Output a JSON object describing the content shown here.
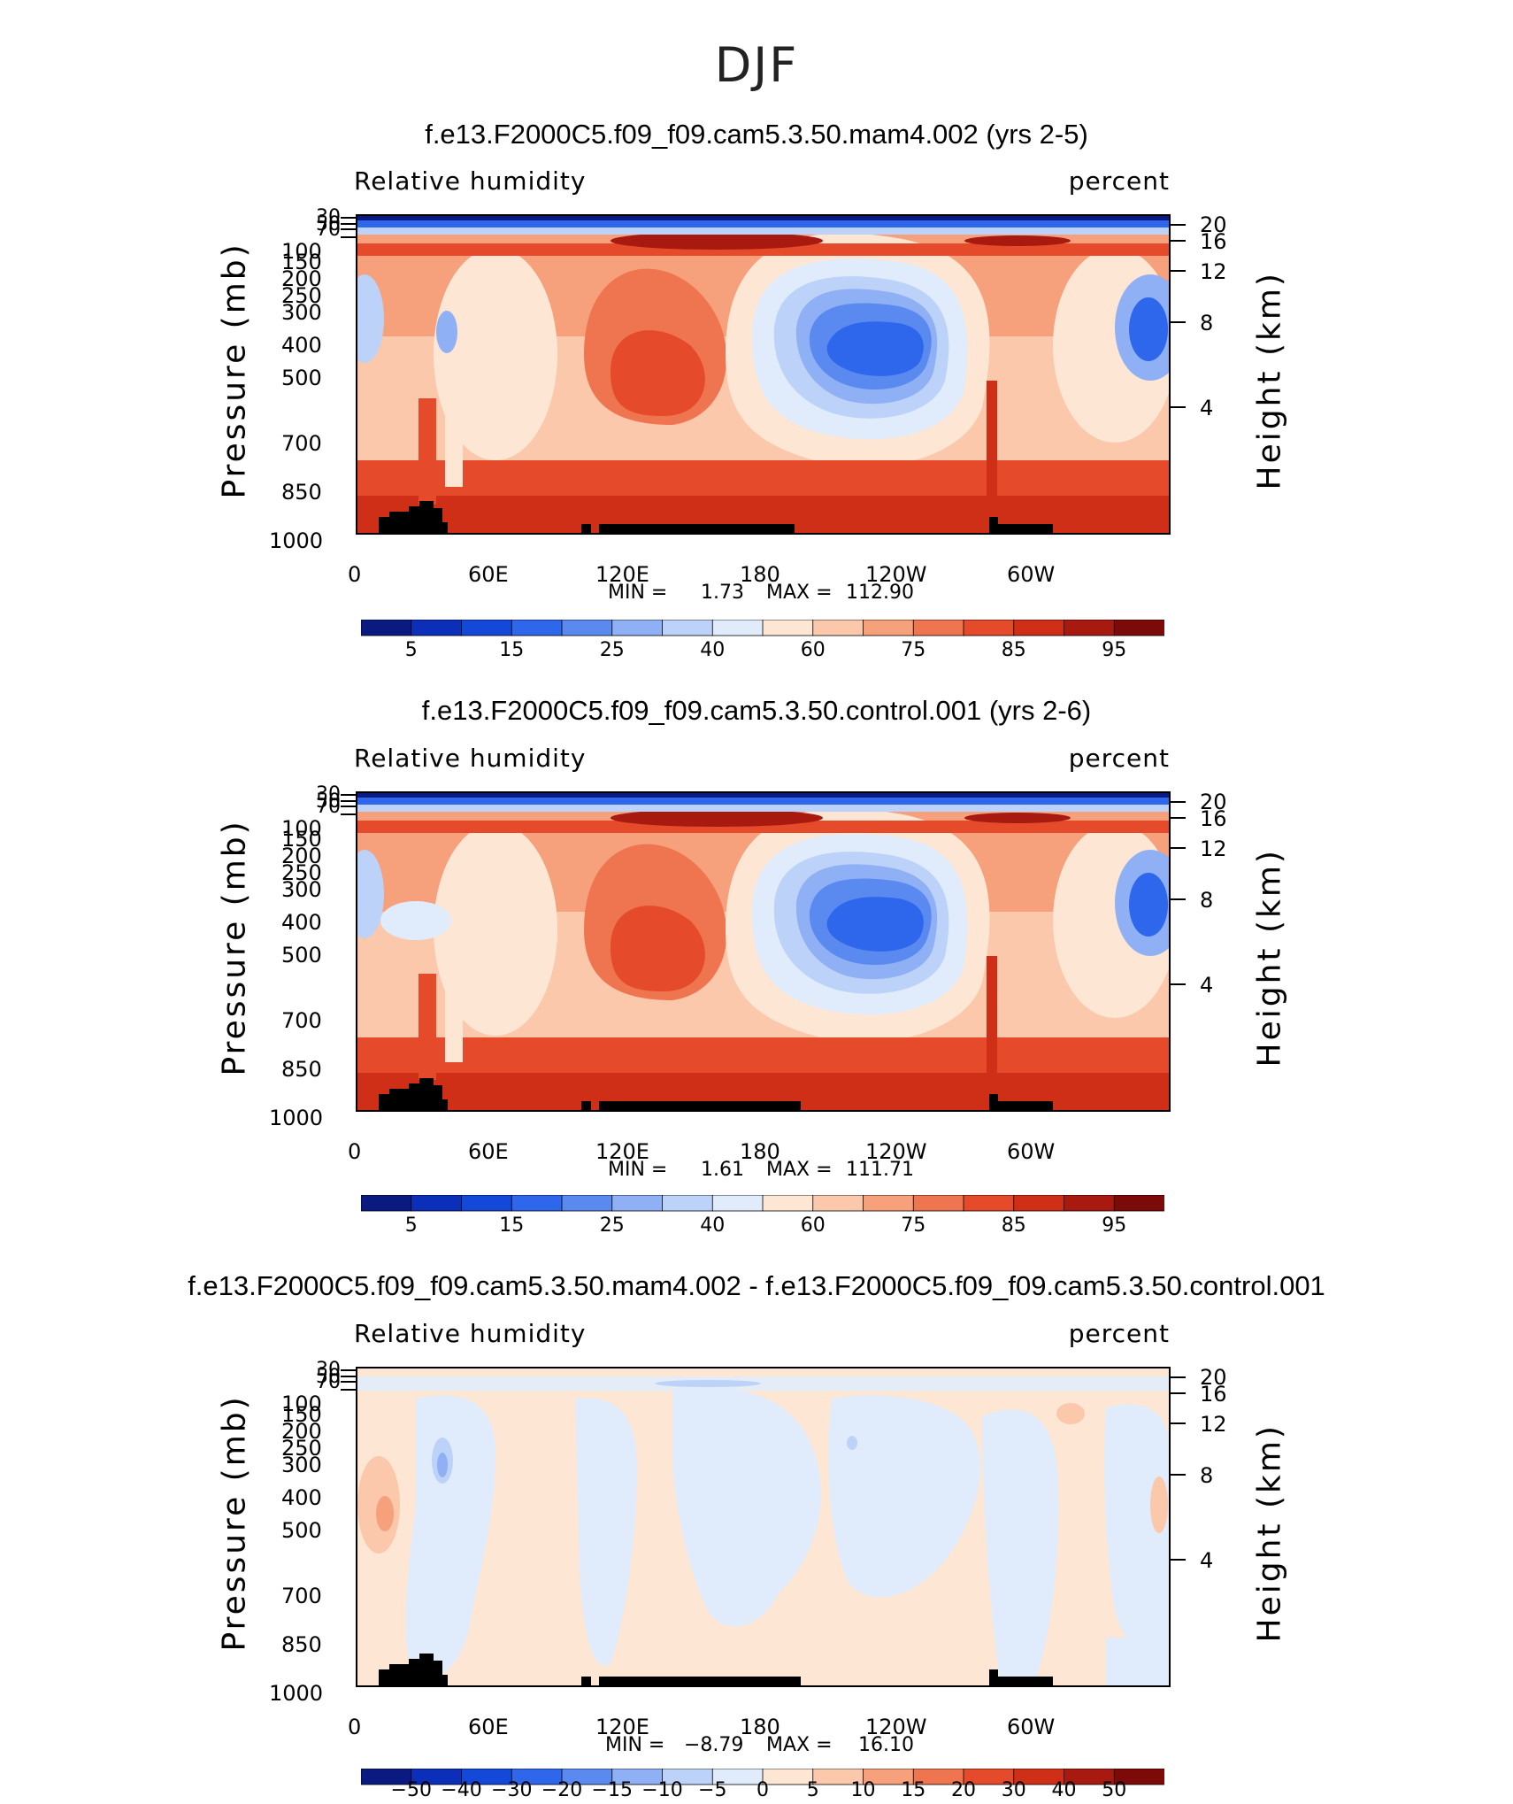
{
  "figure": {
    "title": "DJF"
  },
  "chart_data": [
    {
      "type": "heatmap",
      "title": "f.e13.F2000C5.f09_f09.cam5.3.50.mam4.002 (yrs 2-5)",
      "variable_label": "Relative humidity",
      "units_label": "percent",
      "ylabel": "Pressure (mb)",
      "ylabel_right": "Height (km)",
      "pressure_ticks": [
        "30",
        "50",
        "70",
        "100",
        "150",
        "200",
        "250",
        "300",
        "400",
        "500",
        "700",
        "850",
        "1000"
      ],
      "pressure_ticks_visible": [
        "150",
        "200",
        "250",
        "300",
        "400",
        "500",
        "700",
        "850",
        "1000"
      ],
      "height_ticks": [
        "20",
        "16",
        "12",
        "8",
        "4"
      ],
      "x_ticks": [
        "0",
        "60E",
        "120E",
        "180",
        "120W",
        "60W"
      ],
      "min_label": "MIN =",
      "min_value": "1.73",
      "max_label": "MAX =",
      "max_value": "112.90",
      "colorbar_labels": [
        "5",
        "15",
        "25",
        "40",
        "60",
        "75",
        "85",
        "95"
      ],
      "colorbar_colors": [
        "#0a1a80",
        "#0b2fb8",
        "#1448d8",
        "#2e66ec",
        "#5a8af0",
        "#8fb0f4",
        "#bcd2f8",
        "#e0ecfb",
        "#fde6d4",
        "#fbc8ab",
        "#f6a07c",
        "#ef7550",
        "#e54a2a",
        "#cf2f17",
        "#a81a10",
        "#7c0a08"
      ],
      "field_summary": "mostly moist (60-95 %) with dry subtropical minimum near 130W-160W around 400 mb and dry stratosphere above 70 mb"
    },
    {
      "type": "heatmap",
      "title": "f.e13.F2000C5.f09_f09.cam5.3.50.control.001 (yrs 2-6)",
      "variable_label": "Relative humidity",
      "units_label": "percent",
      "ylabel": "Pressure (mb)",
      "ylabel_right": "Height (km)",
      "pressure_ticks_visible": [
        "100",
        "150",
        "200",
        "250",
        "300",
        "400",
        "500",
        "700",
        "850",
        "1000"
      ],
      "height_ticks": [
        "20",
        "16",
        "12",
        "8",
        "4"
      ],
      "x_ticks": [
        "0",
        "60E",
        "120E",
        "180",
        "120W",
        "60W"
      ],
      "min_label": "MIN =",
      "min_value": "1.61",
      "max_label": "MAX =",
      "max_value": "111.71",
      "colorbar_labels": [
        "5",
        "15",
        "25",
        "40",
        "60",
        "75",
        "85",
        "95"
      ],
      "colorbar_colors": [
        "#0a1a80",
        "#0b2fb8",
        "#1448d8",
        "#2e66ec",
        "#5a8af0",
        "#8fb0f4",
        "#bcd2f8",
        "#e0ecfb",
        "#fde6d4",
        "#fbc8ab",
        "#f6a07c",
        "#ef7550",
        "#e54a2a",
        "#cf2f17",
        "#a81a10",
        "#7c0a08"
      ]
    },
    {
      "type": "heatmap",
      "title": "f.e13.F2000C5.f09_f09.cam5.3.50.mam4.002 - f.e13.F2000C5.f09_f09.cam5.3.50.control.001",
      "variable_label": "Relative humidity",
      "units_label": "percent",
      "ylabel": "Pressure (mb)",
      "ylabel_right": "Height (km)",
      "pressure_ticks_visible": [
        "100",
        "150",
        "200",
        "250",
        "300",
        "400",
        "500",
        "700",
        "850",
        "1000"
      ],
      "height_ticks": [
        "20",
        "16",
        "12",
        "8",
        "4"
      ],
      "x_ticks": [
        "0",
        "60E",
        "120E",
        "180",
        "120W",
        "60W"
      ],
      "min_label": "MIN =",
      "min_value": "−8.79",
      "max_label": "MAX =",
      "max_value": "16.10",
      "colorbar_labels": [
        "−50",
        "−40",
        "−30",
        "−20",
        "−15",
        "−10",
        "−5",
        "0",
        "5",
        "10",
        "15",
        "20",
        "30",
        "40",
        "50"
      ],
      "colorbar_colors": [
        "#0a1a80",
        "#0b2fb8",
        "#1448d8",
        "#2e66ec",
        "#5a8af0",
        "#8fb0f4",
        "#bcd2f8",
        "#e0ecfb",
        "#fde6d4",
        "#fbc8ab",
        "#f6a07c",
        "#ef7550",
        "#e54a2a",
        "#cf2f17",
        "#a81a10",
        "#7c0a08"
      ],
      "field_summary": "differences mostly within -5 to +5 %, local positive maximum near 5E 450 mb"
    }
  ]
}
